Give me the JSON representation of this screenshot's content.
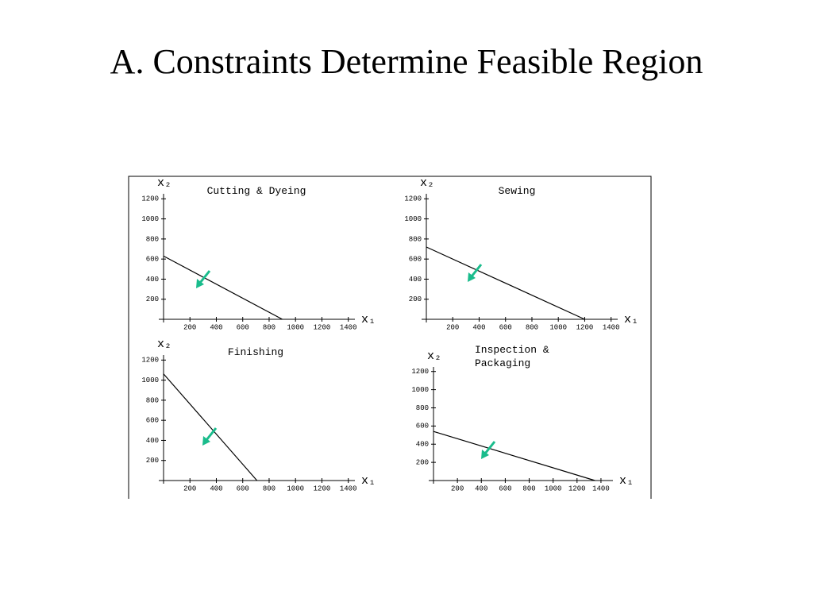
{
  "slide": {
    "title": "A. Constraints Determine Feasible Region"
  },
  "chart_data": [
    {
      "type": "line",
      "title": "Cutting & Dyeing",
      "xlabel": "x₁",
      "ylabel": "x₂",
      "x": [
        0,
        900
      ],
      "values": [
        630,
        0
      ],
      "color": "#000000",
      "xlim": [
        0,
        1450
      ],
      "ylim": [
        0,
        1250
      ],
      "xticks": [
        200,
        400,
        600,
        800,
        1000,
        1200,
        1400
      ],
      "yticks": [
        200,
        400,
        600,
        800,
        1000,
        1200
      ]
    },
    {
      "type": "line",
      "title": "Sewing",
      "xlabel": "x₁",
      "ylabel": "x₂",
      "x": [
        0,
        1200
      ],
      "values": [
        720,
        0
      ],
      "color": "#000000",
      "xlim": [
        0,
        1450
      ],
      "ylim": [
        0,
        1250
      ],
      "xticks": [
        200,
        400,
        600,
        800,
        1000,
        1200,
        1400
      ],
      "yticks": [
        200,
        400,
        600,
        800,
        1000,
        1200
      ]
    },
    {
      "type": "line",
      "title": "Finishing",
      "xlabel": "x₁",
      "ylabel": "x₂",
      "x": [
        0,
        708
      ],
      "values": [
        1062,
        0
      ],
      "color": "#000000",
      "xlim": [
        0,
        1450
      ],
      "ylim": [
        0,
        1250
      ],
      "xticks": [
        200,
        400,
        600,
        800,
        1000,
        1200,
        1400
      ],
      "yticks": [
        200,
        400,
        600,
        800,
        1000,
        1200
      ]
    },
    {
      "type": "line",
      "title": "Inspection & Packaging",
      "xlabel": "x₁",
      "ylabel": "x₂",
      "x": [
        0,
        1350
      ],
      "values": [
        540,
        0
      ],
      "color": "#000000",
      "xlim": [
        0,
        1500
      ],
      "ylim": [
        0,
        1250
      ],
      "xticks": [
        200,
        400,
        600,
        800,
        1000,
        1200,
        1400
      ],
      "yticks": [
        200,
        400,
        600,
        800,
        1000,
        1200
      ]
    }
  ]
}
